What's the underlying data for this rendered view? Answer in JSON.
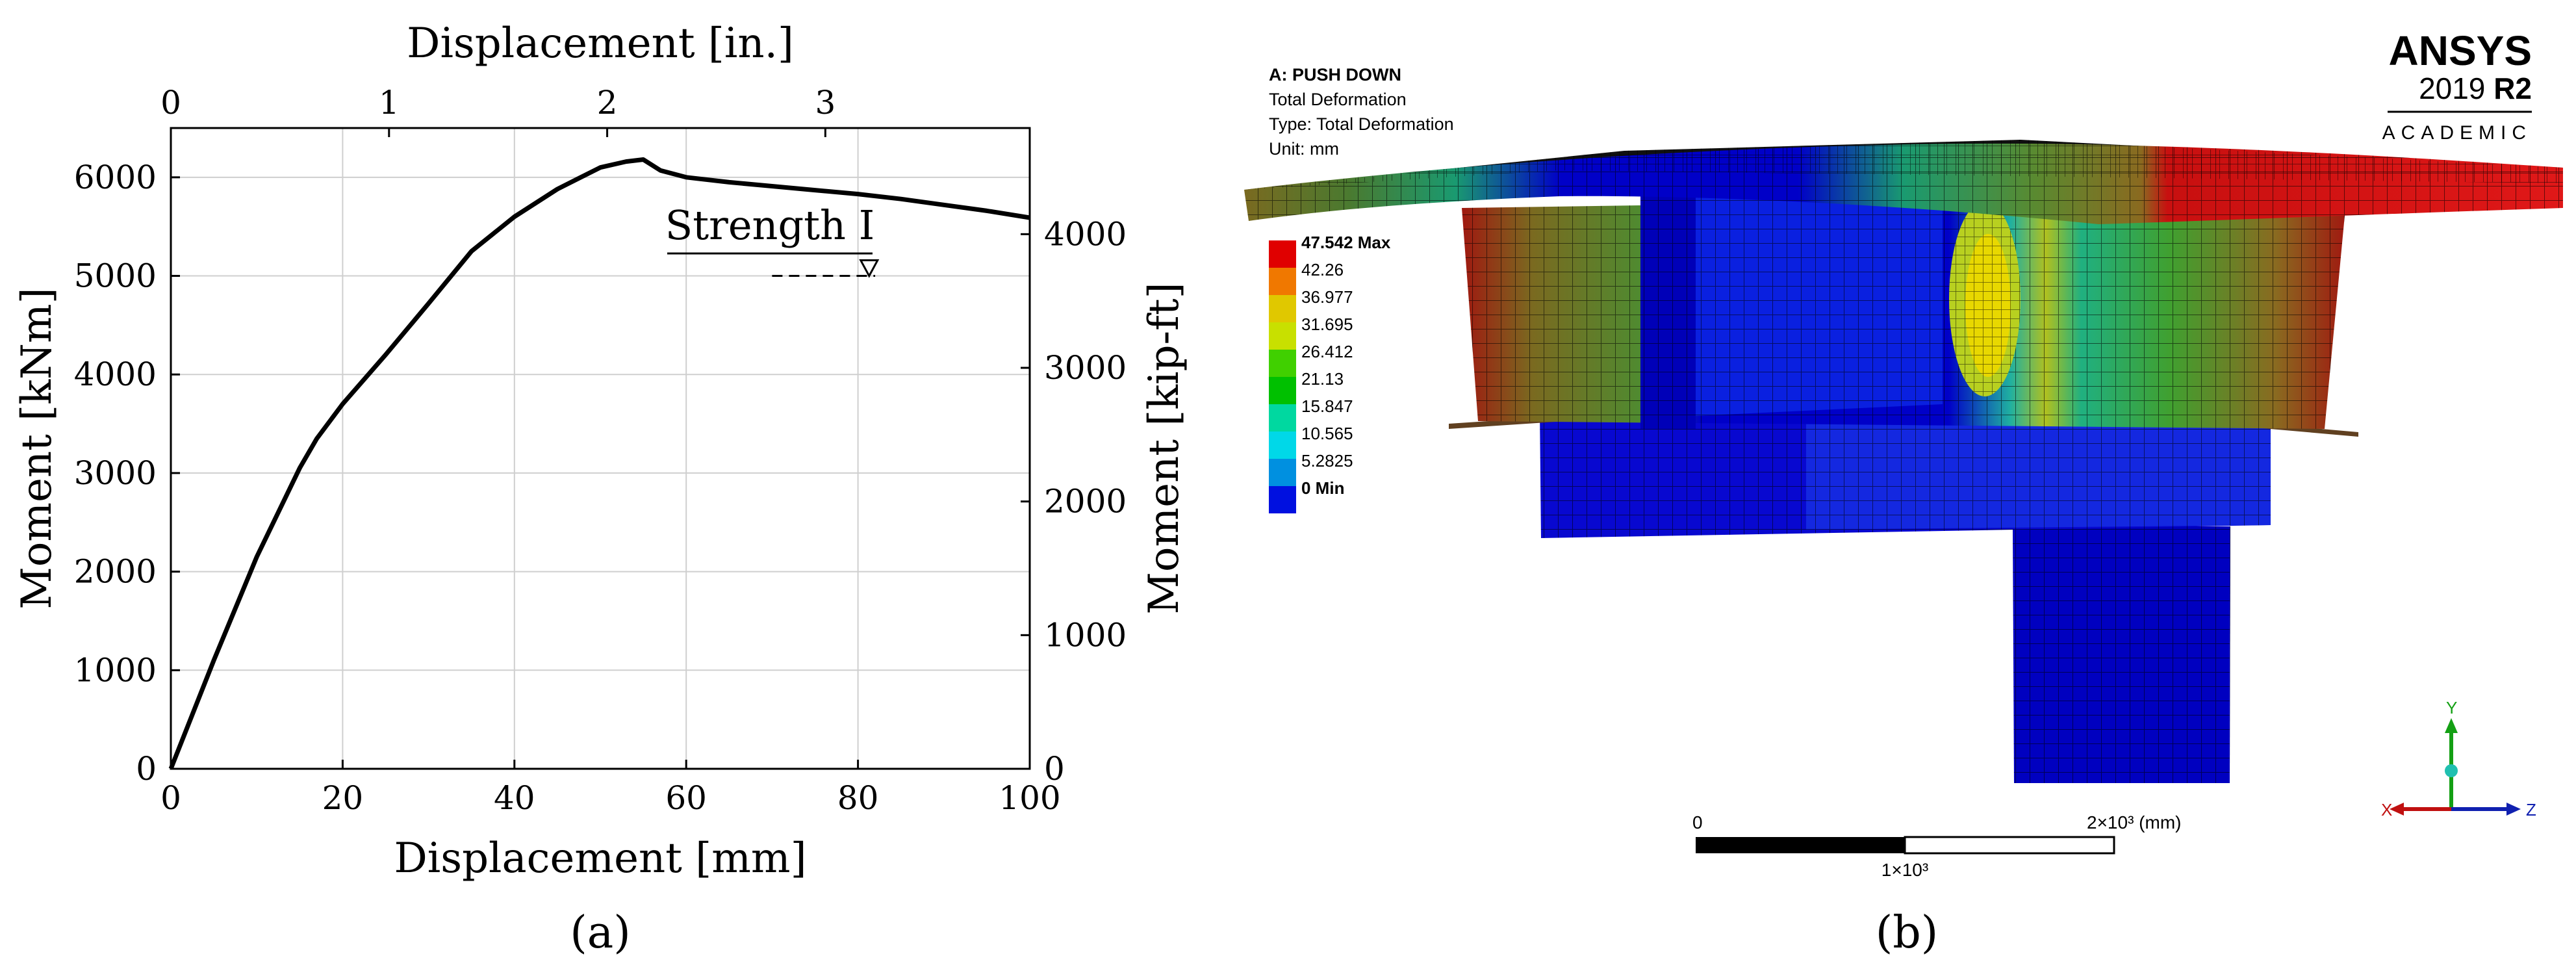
{
  "chart_data": [
    {
      "type": "line",
      "panel_label": "(a)",
      "xlabel": "Displacement [mm]",
      "xlabel_top": "Displacement [in.]",
      "ylabel": "Moment [kNm]",
      "ylabel_right": "Moment [kip-ft]",
      "xlim": [
        0,
        100
      ],
      "ylim": [
        0,
        6500
      ],
      "x_ticks": [
        0,
        20,
        40,
        60,
        80,
        100
      ],
      "y_ticks": [
        0,
        1000,
        2000,
        3000,
        4000,
        5000,
        6000
      ],
      "top_ticks": [
        0,
        1,
        2,
        3
      ],
      "right_ticks": [
        0,
        1000,
        2000,
        3000,
        4000
      ],
      "grid": true,
      "annotation": {
        "text": "Strength I",
        "y": 5000,
        "x_start": 70,
        "x_end": 82
      },
      "series": [
        {
          "x": [
            0,
            5,
            10,
            15,
            17,
            20,
            25,
            30,
            35,
            40,
            45,
            50,
            53,
            55,
            57,
            60,
            65,
            70,
            75,
            80,
            85,
            90,
            95,
            100
          ],
          "y": [
            0,
            1100,
            2150,
            3050,
            3350,
            3700,
            4200,
            4720,
            5250,
            5600,
            5880,
            6100,
            6160,
            6180,
            6070,
            6000,
            5950,
            5910,
            5870,
            5830,
            5780,
            5720,
            5660,
            5590
          ]
        }
      ]
    },
    {
      "type": "heatmap",
      "panel_label": "(b)",
      "header_lines": [
        "A: PUSH DOWN",
        "Total Deformation",
        "Type: Total Deformation",
        "Unit: mm"
      ],
      "logo": {
        "brand": "ANSYS",
        "version": "2019",
        "release": "R2",
        "edition": "ACADEMIC"
      },
      "legend": {
        "values": [
          "47.542 Max",
          "42.26",
          "36.977",
          "31.695",
          "26.412",
          "21.13",
          "15.847",
          "10.565",
          "5.2825",
          "0 Min"
        ],
        "colors": [
          "#e00000",
          "#f07800",
          "#e0c800",
          "#c8e000",
          "#40d000",
          "#00c000",
          "#00d8a0",
          "#00d8e8",
          "#0090e0",
          "#0010e0"
        ]
      },
      "scale_bar": {
        "start": "0",
        "mid": "1×10³",
        "end": "2×10³ (mm)"
      },
      "triad": {
        "x": "X",
        "y": "Y",
        "z": "Z"
      }
    }
  ]
}
